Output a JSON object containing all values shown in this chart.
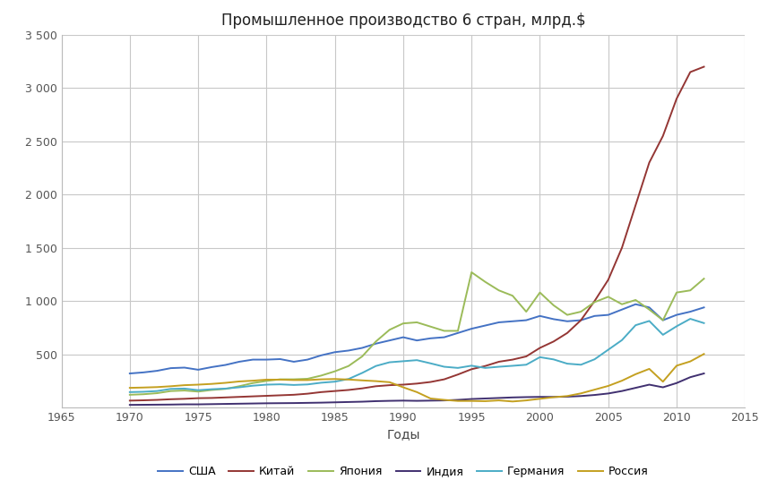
{
  "title": "Промышленное производство 6 стран, млрд.$",
  "xlabel": "Годы",
  "xlim": [
    1965,
    2015
  ],
  "ylim": [
    0,
    3500
  ],
  "yticks": [
    0,
    500,
    1000,
    1500,
    2000,
    2500,
    3000,
    3500
  ],
  "ytick_labels": [
    "",
    "500",
    "1 000",
    "1 500",
    "2 000",
    "2 500",
    "3 000",
    "3 500"
  ],
  "xticks": [
    1965,
    1970,
    1975,
    1980,
    1985,
    1990,
    1995,
    2000,
    2005,
    2010,
    2015
  ],
  "background_color": "#FFFFFF",
  "grid_color": "#C8C8C8",
  "series": {
    "США": {
      "color": "#4472C4",
      "years": [
        1970,
        1971,
        1972,
        1973,
        1974,
        1975,
        1976,
        1977,
        1978,
        1979,
        1980,
        1981,
        1982,
        1983,
        1984,
        1985,
        1986,
        1987,
        1988,
        1989,
        1990,
        1991,
        1992,
        1993,
        1994,
        1995,
        1996,
        1997,
        1998,
        1999,
        2000,
        2001,
        2002,
        2003,
        2004,
        2005,
        2006,
        2007,
        2008,
        2009,
        2010,
        2011,
        2012
      ],
      "values": [
        320,
        330,
        345,
        370,
        375,
        355,
        380,
        400,
        430,
        450,
        450,
        455,
        430,
        450,
        490,
        520,
        535,
        560,
        600,
        630,
        660,
        630,
        650,
        660,
        700,
        740,
        770,
        800,
        810,
        820,
        860,
        830,
        810,
        820,
        860,
        870,
        920,
        970,
        940,
        820,
        870,
        900,
        940
      ]
    },
    "Китай": {
      "color": "#943634",
      "years": [
        1970,
        1971,
        1972,
        1973,
        1974,
        1975,
        1976,
        1977,
        1978,
        1979,
        1980,
        1981,
        1982,
        1983,
        1984,
        1985,
        1986,
        1987,
        1988,
        1989,
        1990,
        1991,
        1992,
        1993,
        1994,
        1995,
        1996,
        1997,
        1998,
        1999,
        2000,
        2001,
        2002,
        2003,
        2004,
        2005,
        2006,
        2007,
        2008,
        2009,
        2010,
        2011,
        2012
      ],
      "values": [
        65,
        68,
        72,
        78,
        82,
        88,
        90,
        95,
        100,
        105,
        110,
        115,
        120,
        130,
        145,
        155,
        165,
        180,
        200,
        210,
        215,
        225,
        240,
        265,
        310,
        360,
        390,
        430,
        450,
        480,
        560,
        620,
        700,
        820,
        1000,
        1200,
        1500,
        1900,
        2300,
        2550,
        2900,
        3150,
        3200
      ]
    },
    "Япония": {
      "color": "#9BBB59",
      "years": [
        1970,
        1971,
        1972,
        1973,
        1974,
        1975,
        1976,
        1977,
        1978,
        1979,
        1980,
        1981,
        1982,
        1983,
        1984,
        1985,
        1986,
        1987,
        1988,
        1989,
        1990,
        1991,
        1992,
        1993,
        1994,
        1995,
        1996,
        1997,
        1998,
        1999,
        2000,
        2001,
        2002,
        2003,
        2004,
        2005,
        2006,
        2007,
        2008,
        2009,
        2010,
        2011,
        2012
      ],
      "values": [
        120,
        125,
        135,
        155,
        160,
        150,
        165,
        175,
        200,
        230,
        250,
        265,
        265,
        270,
        300,
        340,
        390,
        480,
        620,
        730,
        790,
        800,
        760,
        720,
        720,
        1270,
        1180,
        1100,
        1050,
        900,
        1080,
        960,
        870,
        900,
        990,
        1040,
        970,
        1010,
        920,
        820,
        1080,
        1100,
        1210
      ]
    },
    "Индия": {
      "color": "#403070",
      "years": [
        1970,
        1971,
        1972,
        1973,
        1974,
        1975,
        1976,
        1977,
        1978,
        1979,
        1980,
        1981,
        1982,
        1983,
        1984,
        1985,
        1986,
        1987,
        1988,
        1989,
        1990,
        1991,
        1992,
        1993,
        1994,
        1995,
        1996,
        1997,
        1998,
        1999,
        2000,
        2001,
        2002,
        2003,
        2004,
        2005,
        2006,
        2007,
        2008,
        2009,
        2010,
        2011,
        2012
      ],
      "values": [
        25,
        26,
        27,
        28,
        30,
        30,
        32,
        34,
        36,
        38,
        40,
        41,
        42,
        44,
        46,
        49,
        52,
        55,
        60,
        63,
        65,
        63,
        65,
        67,
        72,
        80,
        85,
        90,
        95,
        98,
        100,
        100,
        102,
        108,
        118,
        132,
        155,
        185,
        215,
        190,
        230,
        285,
        320
      ]
    },
    "Германия": {
      "color": "#4BACC6",
      "years": [
        1970,
        1971,
        1972,
        1973,
        1974,
        1975,
        1976,
        1977,
        1978,
        1979,
        1980,
        1981,
        1982,
        1983,
        1984,
        1985,
        1986,
        1987,
        1988,
        1989,
        1990,
        1991,
        1992,
        1993,
        1994,
        1995,
        1996,
        1997,
        1998,
        1999,
        2000,
        2001,
        2002,
        2003,
        2004,
        2005,
        2006,
        2007,
        2008,
        2009,
        2010,
        2011,
        2012
      ],
      "values": [
        145,
        148,
        155,
        175,
        178,
        163,
        172,
        178,
        190,
        205,
        215,
        218,
        212,
        217,
        233,
        243,
        268,
        325,
        390,
        425,
        435,
        445,
        415,
        383,
        372,
        393,
        372,
        383,
        392,
        402,
        473,
        452,
        412,
        402,
        453,
        543,
        633,
        773,
        813,
        683,
        763,
        833,
        793
      ]
    },
    "Россия": {
      "color": "#C4A020",
      "years": [
        1970,
        1971,
        1972,
        1973,
        1974,
        1975,
        1976,
        1977,
        1978,
        1979,
        1980,
        1981,
        1982,
        1983,
        1984,
        1985,
        1986,
        1987,
        1988,
        1989,
        1990,
        1991,
        1992,
        1993,
        1994,
        1995,
        1996,
        1997,
        1998,
        1999,
        2000,
        2001,
        2002,
        2003,
        2004,
        2005,
        2006,
        2007,
        2008,
        2009,
        2010,
        2011,
        2012
      ],
      "values": [
        185,
        188,
        192,
        200,
        210,
        215,
        222,
        232,
        245,
        252,
        262,
        262,
        258,
        258,
        265,
        268,
        263,
        255,
        248,
        238,
        190,
        145,
        85,
        72,
        62,
        62,
        60,
        67,
        57,
        67,
        82,
        97,
        108,
        133,
        168,
        203,
        252,
        313,
        363,
        243,
        393,
        433,
        503
      ]
    }
  },
  "legend_order": [
    "США",
    "Китай",
    "Япония",
    "Индия",
    "Германия",
    "Россия"
  ]
}
